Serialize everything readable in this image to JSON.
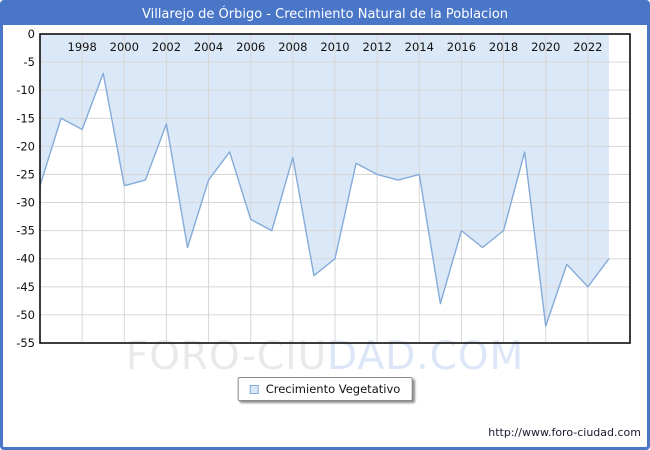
{
  "header": {
    "title": "Villarejo de Órbigo - Crecimiento Natural de la Poblacion"
  },
  "legend": {
    "label": "Crecimiento Vegetativo"
  },
  "watermark": {
    "part1": "FORO-CIU",
    "part2": "DAD.COM"
  },
  "footer": {
    "url": "http://www.foro-ciudad.com"
  },
  "colors": {
    "accent_blue": "#4a76c8",
    "line": "#85abd9",
    "fill": "#dbe8f7",
    "grid": "#d7d7d7",
    "plot_border": "#1a1a1a",
    "tick_text": "#111111"
  },
  "chart_data": {
    "type": "area",
    "title": "Villarejo de Órbigo - Crecimiento Natural de la Poblacion",
    "series_name": "Crecimiento Vegetativo",
    "x": [
      1996,
      1997,
      1998,
      1999,
      2000,
      2001,
      2002,
      2003,
      2004,
      2005,
      2006,
      2007,
      2008,
      2009,
      2010,
      2011,
      2012,
      2013,
      2014,
      2015,
      2016,
      2017,
      2018,
      2019,
      2020,
      2021,
      2022,
      2023
    ],
    "values": [
      -27,
      -15,
      -17,
      -7,
      -27,
      -26,
      -16,
      -38,
      -26,
      -21,
      -33,
      -35,
      -22,
      -43,
      -40,
      -23,
      -25,
      -26,
      -25,
      -48,
      -35,
      -38,
      -35,
      -21,
      -52,
      -41,
      -45,
      -40
    ],
    "xticks": [
      1998,
      2000,
      2002,
      2004,
      2006,
      2008,
      2010,
      2012,
      2014,
      2016,
      2018,
      2020,
      2022
    ],
    "yticks": [
      0,
      -5,
      -10,
      -15,
      -20,
      -25,
      -30,
      -35,
      -40,
      -45,
      -50,
      -55
    ],
    "xlim": [
      1996,
      2024
    ],
    "ylim": [
      -55,
      0
    ],
    "grid": true,
    "legend_position": "bottom",
    "xlabel": "",
    "ylabel": ""
  }
}
